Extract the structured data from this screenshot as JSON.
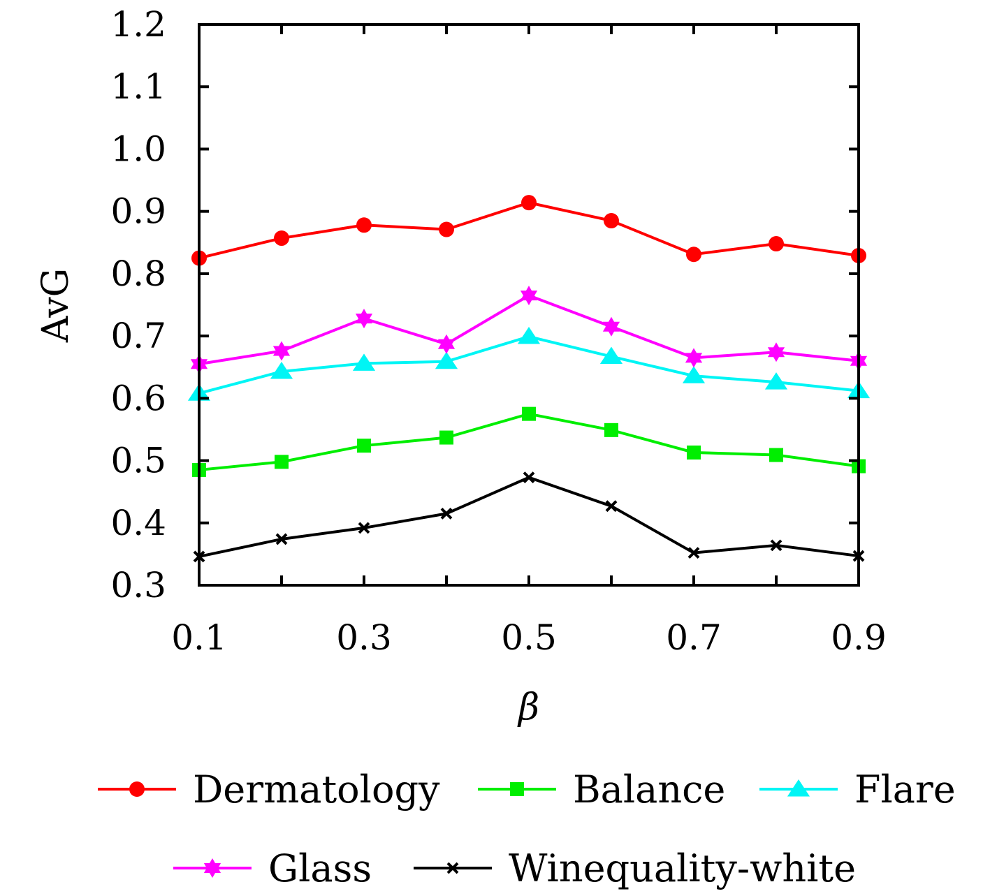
{
  "chart_data": {
    "type": "line",
    "title": "",
    "xlabel": "β",
    "ylabel": "AvG",
    "x": [
      0.1,
      0.2,
      0.3,
      0.4,
      0.5,
      0.6,
      0.7,
      0.8,
      0.9
    ],
    "xlim": [
      0.1,
      0.9
    ],
    "ylim": [
      0.3,
      1.2
    ],
    "xticks": [
      "0.1",
      "0.3",
      "0.5",
      "0.7",
      "0.9"
    ],
    "xtick_values": [
      0.1,
      0.3,
      0.5,
      0.7,
      0.9
    ],
    "yticks": [
      "0.3",
      "0.4",
      "0.5",
      "0.6",
      "0.7",
      "0.8",
      "0.9",
      "1.0",
      "1.1",
      "1.2"
    ],
    "ytick_values": [
      0.3,
      0.4,
      0.5,
      0.6,
      0.7,
      0.8,
      0.9,
      1.0,
      1.1,
      1.2
    ],
    "grid": false,
    "legend_position": "bottom",
    "series": [
      {
        "name": "Dermatology",
        "color": "#ff0000",
        "marker": "circle",
        "values": [
          0.825,
          0.857,
          0.878,
          0.871,
          0.914,
          0.885,
          0.831,
          0.848,
          0.829
        ]
      },
      {
        "name": "Balance",
        "color": "#00ee00",
        "marker": "square",
        "values": [
          0.485,
          0.498,
          0.524,
          0.537,
          0.575,
          0.549,
          0.513,
          0.509,
          0.491
        ]
      },
      {
        "name": "Flare",
        "color": "#00f5f5",
        "marker": "triangle",
        "values": [
          0.608,
          0.643,
          0.656,
          0.659,
          0.699,
          0.667,
          0.636,
          0.626,
          0.612
        ]
      },
      {
        "name": "Glass",
        "color": "#ff00ff",
        "marker": "star",
        "values": [
          0.655,
          0.676,
          0.728,
          0.687,
          0.765,
          0.715,
          0.665,
          0.674,
          0.66
        ]
      },
      {
        "name": "Winequality-white",
        "color": "#000000",
        "marker": "x",
        "values": [
          0.346,
          0.374,
          0.392,
          0.415,
          0.473,
          0.427,
          0.352,
          0.364,
          0.347
        ]
      }
    ]
  }
}
